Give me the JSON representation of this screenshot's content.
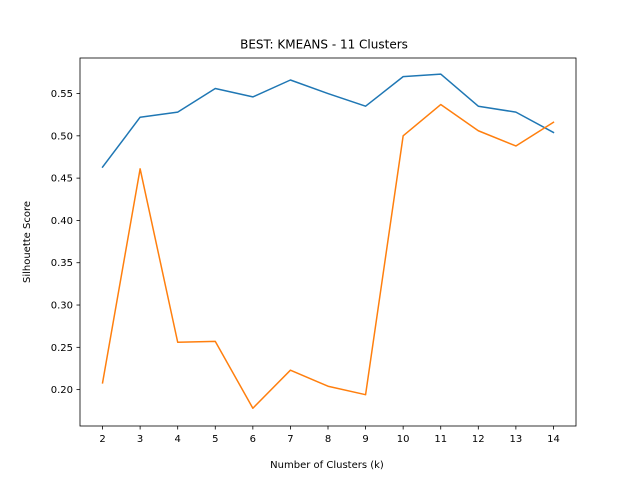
{
  "chart_data": {
    "type": "line",
    "title": "BEST: KMEANS - 11 Clusters",
    "xlabel": "Number of Clusters (k)",
    "ylabel": "Silhouette Score",
    "x": [
      2,
      3,
      4,
      5,
      6,
      7,
      8,
      9,
      10,
      11,
      12,
      13,
      14
    ],
    "xticks": [
      "2",
      "3",
      "4",
      "5",
      "6",
      "7",
      "8",
      "9",
      "10",
      "11",
      "12",
      "13",
      "14"
    ],
    "yticks": [
      "0.20",
      "0.25",
      "0.30",
      "0.35",
      "0.40",
      "0.45",
      "0.50",
      "0.55"
    ],
    "ylim": [
      0.157,
      0.592
    ],
    "xlim": [
      1.4,
      14.6
    ],
    "grid": false,
    "series": [
      {
        "color": "#1f77b4",
        "values": [
          0.463,
          0.522,
          0.528,
          0.556,
          0.546,
          0.566,
          0.55,
          0.535,
          0.57,
          0.573,
          0.535,
          0.528,
          0.504
        ]
      },
      {
        "color": "#ff7f0e",
        "values": [
          0.208,
          0.461,
          0.256,
          0.257,
          0.178,
          0.223,
          0.204,
          0.194,
          0.5,
          0.537,
          0.506,
          0.488,
          0.516
        ]
      }
    ]
  }
}
